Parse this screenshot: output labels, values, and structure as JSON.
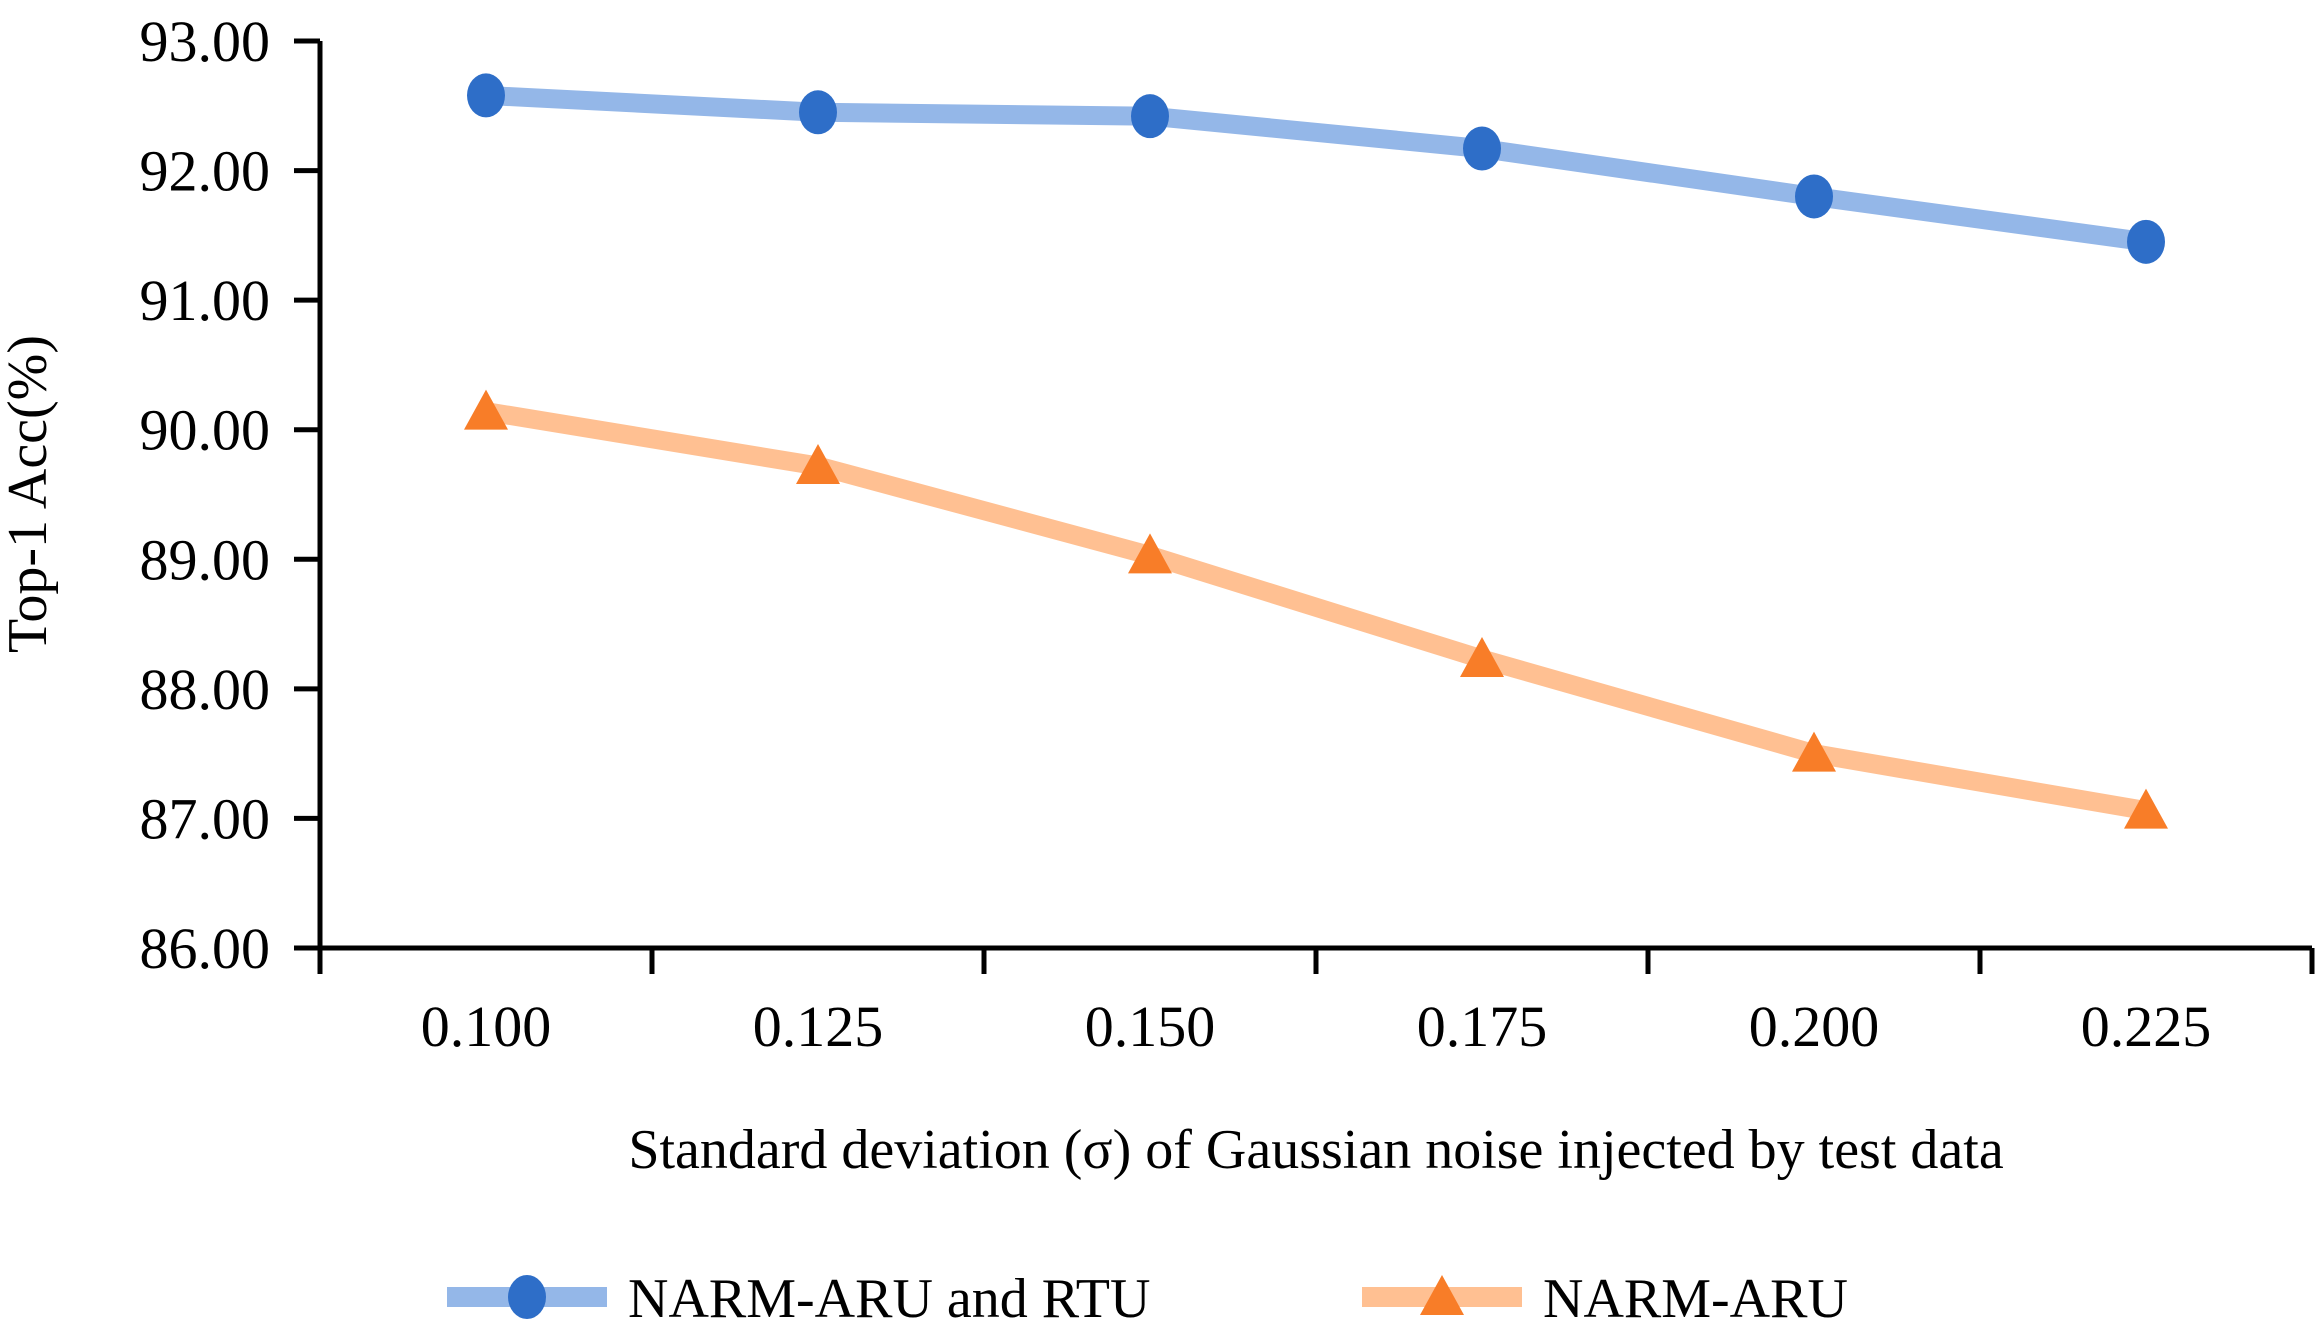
{
  "chart_data": {
    "type": "line",
    "title": "",
    "xlabel": "Standard deviation (σ) of Gaussian noise injected by test data",
    "ylabel": "Top-1 Acc(%)",
    "x_tick_labels": [
      "0.100",
      "0.125",
      "0.150",
      "0.175",
      "0.200",
      "0.225"
    ],
    "y_ticks": [
      86,
      87,
      88,
      89,
      90,
      91,
      92,
      93
    ],
    "y_tick_labels": [
      "86.00",
      "87.00",
      "88.00",
      "89.00",
      "90.00",
      "91.00",
      "92.00",
      "93.00"
    ],
    "ylim": [
      86,
      93
    ],
    "grid": false,
    "legend_position": "bottom",
    "axis_color": "#000000",
    "series": [
      {
        "name": "NARM-ARU and RTU",
        "marker": "circle",
        "line_color": "#94b7e8",
        "marker_color": "#2e6ec8",
        "values": [
          92.58,
          92.45,
          92.42,
          92.17,
          91.8,
          91.45
        ]
      },
      {
        "name": "NARM-ARU",
        "marker": "triangle",
        "line_color": "#ffc092",
        "marker_color": "#f87d28",
        "values": [
          90.14,
          89.72,
          89.03,
          88.23,
          87.5,
          87.06
        ]
      }
    ]
  }
}
